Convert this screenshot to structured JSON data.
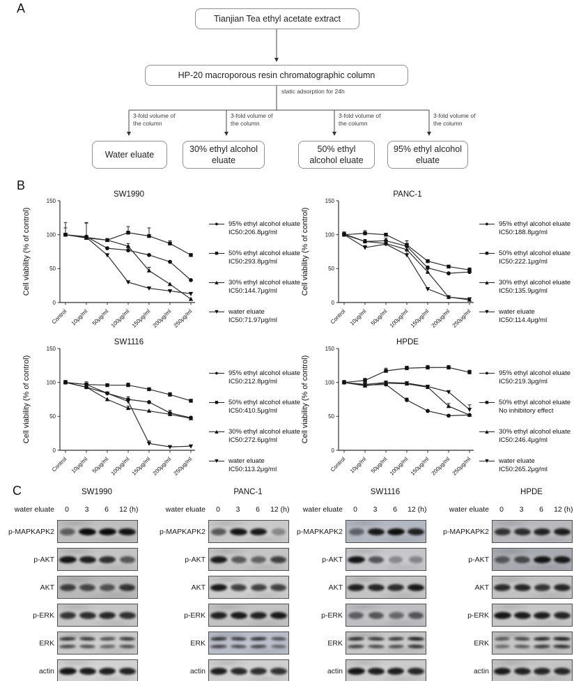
{
  "panelA": {
    "label": "A",
    "top_box": "Tianjian Tea ethyl acetate extract",
    "column_box": "HP-20 macroporous resin chromatographic column",
    "adsorption_label": "static adsorption for 24h",
    "branch_line1": "3-fold volume of",
    "branch_line2": "the column",
    "eluates": [
      "Water eluate",
      "30% ethyl alcohol eluate",
      "50% ethyl alcohol eluate",
      "95% ethyl alcohol eluate"
    ]
  },
  "panelB": {
    "label": "B"
  },
  "chart_data": [
    {
      "type": "line",
      "title": "SW1990",
      "ylabel": "Cell viability (% of control)",
      "ylim": [
        0,
        150
      ],
      "yticks": [
        0,
        50,
        100,
        150
      ],
      "legend_position": "right",
      "categories": [
        "Control",
        "10μg/ml",
        "50μg/ml",
        "100μg/ml",
        "150μg/ml",
        "200μg/ml",
        "250μg/ml"
      ],
      "series": [
        {
          "name": "95% ethyl alcohol eluate",
          "ic50": "IC50:206.8μg/ml",
          "marker": "circle",
          "values": [
            100,
            97,
            80,
            77,
            70,
            60,
            33
          ],
          "err": [
            10,
            20,
            0,
            6,
            0,
            0,
            0
          ]
        },
        {
          "name": "50% ethyl alcohol eluate",
          "ic50": "IC50:293.8μg/ml",
          "marker": "square",
          "values": [
            100,
            96,
            92,
            103,
            98,
            87,
            70
          ],
          "err": [
            18,
            22,
            0,
            9,
            12,
            4,
            0
          ]
        },
        {
          "name": "30% ethyl alcohol eluate",
          "ic50": "IC50:144.7μg/ml",
          "marker": "triangle",
          "values": [
            100,
            95,
            92,
            83,
            47,
            27,
            5
          ],
          "err": [
            0,
            0,
            0,
            4,
            5,
            0,
            0
          ]
        },
        {
          "name": "water eluate",
          "ic50": "IC50:71.97μg/ml",
          "marker": "triangle-down",
          "values": [
            100,
            96,
            70,
            30,
            21,
            17,
            13
          ],
          "err": [
            0,
            0,
            0,
            0,
            0,
            0,
            0
          ]
        }
      ]
    },
    {
      "type": "line",
      "title": "PANC-1",
      "ylabel": "Cell viability (% of control)",
      "ylim": [
        0,
        150
      ],
      "yticks": [
        0,
        50,
        100,
        150
      ],
      "legend_position": "right",
      "categories": [
        "Control",
        "10μg/ml",
        "50μg/ml",
        "100μg/ml",
        "150μg/ml",
        "200μg/ml",
        "250μg/ml"
      ],
      "series": [
        {
          "name": "95% ethyl alcohol eluate",
          "ic50": "IC50:188.8μg/ml",
          "marker": "circle",
          "values": [
            101,
            90,
            91,
            83,
            51,
            43,
            45
          ],
          "err": [
            3,
            3,
            4,
            8,
            3,
            0,
            3
          ]
        },
        {
          "name": "50% ethyl alcohol eluate",
          "ic50": "IC50:222.1μg/ml",
          "marker": "square",
          "values": [
            100,
            102,
            100,
            85,
            61,
            53,
            48
          ],
          "err": [
            4,
            4,
            0,
            6,
            0,
            0,
            3
          ]
        },
        {
          "name": "30% ethyl alcohol eluate",
          "ic50": "IC50:135.9μg/ml",
          "marker": "triangle",
          "values": [
            100,
            90,
            87,
            78,
            45,
            8,
            4
          ],
          "err": [
            0,
            3,
            3,
            6,
            0,
            0,
            0
          ]
        },
        {
          "name": "water eluate",
          "ic50": "IC50:114.4μg/ml",
          "marker": "triangle-down",
          "values": [
            100,
            81,
            86,
            70,
            20,
            8,
            5
          ],
          "err": [
            0,
            3,
            0,
            8,
            0,
            0,
            0
          ]
        }
      ]
    },
    {
      "type": "line",
      "title": "SW1116",
      "ylabel": "Cell viability (% of control)",
      "ylim": [
        0,
        150
      ],
      "yticks": [
        0,
        50,
        100,
        150
      ],
      "legend_position": "right",
      "categories": [
        "Control",
        "10μg/ml",
        "50μg/ml",
        "100μg/ml",
        "150μg/ml",
        "200μg/ml",
        "250μg/ml"
      ],
      "series": [
        {
          "name": "95% ethyl alcohol eluate",
          "ic50": "IC50:212.8μg/ml",
          "marker": "circle",
          "values": [
            100,
            93,
            84,
            75,
            71,
            55,
            48
          ],
          "err": [
            0,
            0,
            0,
            4,
            0,
            4,
            0
          ]
        },
        {
          "name": "50% ethyl alcohol eluate",
          "ic50": "IC50:410.5μg/ml",
          "marker": "square",
          "values": [
            100,
            97,
            96,
            96,
            90,
            82,
            73
          ],
          "err": [
            3,
            4,
            0,
            3,
            0,
            3,
            0
          ]
        },
        {
          "name": "30% ethyl alcohol eluate",
          "ic50": "IC50:272.6μg/ml",
          "marker": "triangle",
          "values": [
            100,
            93,
            75,
            62,
            58,
            53,
            47
          ],
          "err": [
            0,
            0,
            0,
            3,
            0,
            0,
            0
          ]
        },
        {
          "name": "water eluate",
          "ic50": "IC50:113.2μg/ml",
          "marker": "triangle-down",
          "values": [
            100,
            97,
            84,
            72,
            10,
            5,
            6
          ],
          "err": [
            0,
            0,
            0,
            0,
            4,
            0,
            0
          ]
        }
      ]
    },
    {
      "type": "line",
      "title": "HPDE",
      "ylabel": "Cell viability (% of control)",
      "ylim": [
        0,
        150
      ],
      "yticks": [
        0,
        50,
        100,
        150
      ],
      "legend_position": "right",
      "categories": [
        "Control",
        "10μg/ml",
        "50μg/ml",
        "100μg/ml",
        "150μg/ml",
        "200μg/ml",
        "250μg/ml"
      ],
      "series": [
        {
          "name": "95% ethyl alcohol eluate",
          "ic50": "IC50:219.3μg/ml",
          "marker": "circle",
          "values": [
            100,
            96,
            97,
            74,
            58,
            51,
            52
          ],
          "err": [
            0,
            0,
            0,
            3,
            0,
            0,
            0
          ]
        },
        {
          "name": "50% ethyl alcohol eluate",
          "ic50": "No inhibitory effect",
          "marker": "square",
          "values": [
            100,
            103,
            117,
            121,
            122,
            122,
            115
          ],
          "err": [
            3,
            3,
            4,
            3,
            3,
            3,
            3
          ]
        },
        {
          "name": "30% ethyl alcohol eluate",
          "ic50": "IC50:246.4μg/ml",
          "marker": "triangle",
          "values": [
            100,
            95,
            99,
            98,
            93,
            65,
            52
          ],
          "err": [
            0,
            3,
            0,
            3,
            3,
            4,
            0
          ]
        },
        {
          "name": "water eluate",
          "ic50": "IC50:265.2μg/ml",
          "marker": "triangle-down",
          "values": [
            100,
            97,
            100,
            99,
            94,
            86,
            60
          ],
          "err": [
            0,
            3,
            0,
            0,
            0,
            0,
            7
          ]
        }
      ]
    }
  ],
  "panelC": {
    "label": "C",
    "treatment_label": "water eluate",
    "timepoints": [
      "0",
      "3",
      "6",
      "12 (h)"
    ],
    "proteins": [
      "p-MAPKAPK2",
      "p-AKT",
      "AKT",
      "p-ERK",
      "ERK",
      "actin"
    ],
    "groups": [
      {
        "title": "SW1990",
        "blots": [
          {
            "protein": "p-MAPKAPK2",
            "bg": "#bfbfbf",
            "double": false,
            "bands": [
              0.55,
              1,
              1,
              0.95
            ]
          },
          {
            "protein": "p-AKT",
            "bg": "#c3c3c3",
            "double": false,
            "bands": [
              0.95,
              0.9,
              0.82,
              0.6
            ]
          },
          {
            "protein": "AKT",
            "bg": "#b8b8b8",
            "double": false,
            "bands": [
              0.72,
              0.68,
              0.62,
              0.78
            ]
          },
          {
            "protein": "p-ERK",
            "bg": "#c6c6c6",
            "double": false,
            "bands": [
              0.78,
              0.82,
              0.85,
              0.8
            ]
          },
          {
            "protein": "ERK",
            "bg": "#c9c9c9",
            "double": true,
            "bands": [
              0.82,
              0.78,
              0.68,
              0.78
            ]
          },
          {
            "protein": "actin",
            "bg": "#d2d2d2",
            "double": false,
            "bands": [
              0.95,
              0.92,
              0.9,
              0.88
            ]
          }
        ]
      },
      {
        "title": "PANC-1",
        "blots": [
          {
            "protein": "p-MAPKAPK2",
            "bg": "#c9c9c9",
            "double": false,
            "bands": [
              0.6,
              0.95,
              0.92,
              0.35
            ]
          },
          {
            "protein": "p-AKT",
            "bg": "#c4c4c4",
            "double": false,
            "bands": [
              0.92,
              0.6,
              0.55,
              0.72
            ]
          },
          {
            "protein": "AKT",
            "bg": "#cccccc",
            "double": false,
            "bands": [
              0.92,
              0.72,
              0.72,
              0.72
            ]
          },
          {
            "protein": "p-ERK",
            "bg": "#c2c2c2",
            "double": false,
            "bands": [
              0.88,
              0.92,
              0.88,
              0.92
            ]
          },
          {
            "protein": "ERK",
            "bg": "#b9bdc9",
            "double": true,
            "bands": [
              0.8,
              0.75,
              0.8,
              0.62
            ]
          },
          {
            "protein": "actin",
            "bg": "#cfcfcf",
            "double": false,
            "bands": [
              0.9,
              0.85,
              0.82,
              0.8
            ]
          }
        ]
      },
      {
        "title": "SW1116",
        "blots": [
          {
            "protein": "p-MAPKAPK2",
            "bg": "#b3b7c1",
            "double": false,
            "bands": [
              0.5,
              0.92,
              0.98,
              0.88
            ]
          },
          {
            "protein": "p-AKT",
            "bg": "#c6c6ca",
            "double": false,
            "bands": [
              0.95,
              0.62,
              0.35,
              0.35
            ]
          },
          {
            "protein": "AKT",
            "bg": "#c4c4c4",
            "double": false,
            "bands": [
              0.88,
              0.86,
              0.82,
              0.92
            ]
          },
          {
            "protein": "p-ERK",
            "bg": "#bfbfc3",
            "double": false,
            "bands": [
              0.55,
              0.6,
              0.5,
              0.6
            ]
          },
          {
            "protein": "ERK",
            "bg": "#c6c6c6",
            "double": true,
            "bands": [
              0.85,
              0.8,
              0.78,
              0.92
            ]
          },
          {
            "protein": "actin",
            "bg": "#cccccc",
            "double": false,
            "bands": [
              0.95,
              0.9,
              0.9,
              0.85
            ]
          }
        ]
      },
      {
        "title": "HPDE",
        "blots": [
          {
            "protein": "p-MAPKAPK2",
            "bg": "#b9b9bd",
            "double": false,
            "bands": [
              0.78,
              0.82,
              0.88,
              0.9
            ]
          },
          {
            "protein": "p-AKT",
            "bg": "#a9a9b1",
            "double": false,
            "bands": [
              0.55,
              0.65,
              0.95,
              0.92
            ]
          },
          {
            "protein": "AKT",
            "bg": "#c2c2c2",
            "double": false,
            "bands": [
              0.82,
              0.86,
              0.78,
              0.86
            ]
          },
          {
            "protein": "p-ERK",
            "bg": "#c6c6c6",
            "double": false,
            "bands": [
              0.95,
              0.92,
              0.9,
              0.88
            ]
          },
          {
            "protein": "ERK",
            "bg": "#c2c2c2",
            "double": true,
            "bands": [
              0.62,
              0.72,
              0.9,
              0.95
            ]
          },
          {
            "protein": "actin",
            "bg": "#c4c4c4",
            "double": false,
            "bands": [
              0.92,
              0.88,
              0.86,
              0.86
            ]
          }
        ]
      }
    ]
  }
}
